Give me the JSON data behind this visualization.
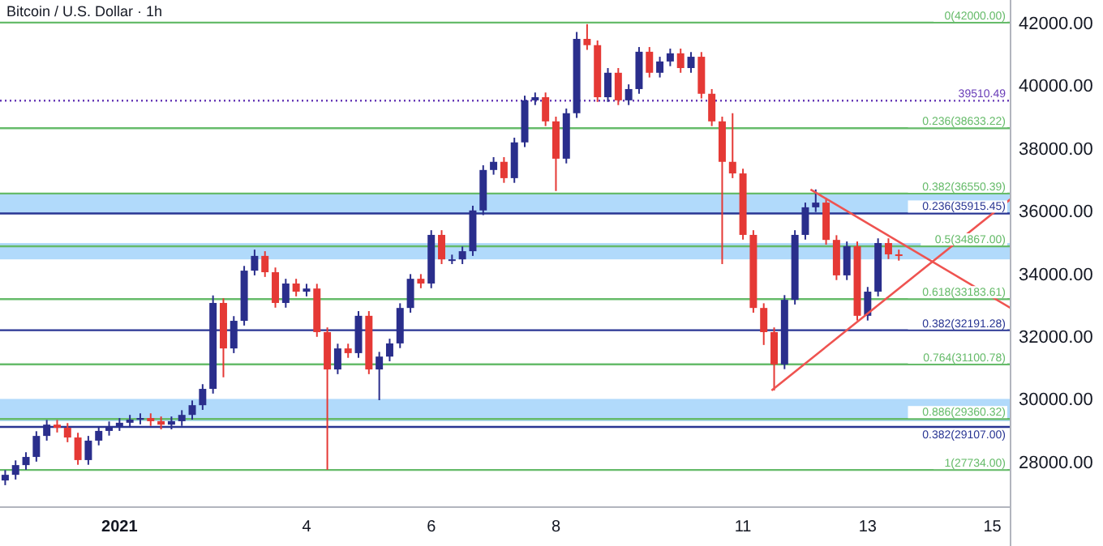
{
  "chart_data": {
    "type": "candlestick",
    "title": "Bitcoin / U.S. Dollar · 1h",
    "x": [
      "2020-12-30T04:00",
      "2020-12-30T08:00",
      "2020-12-30T12:00",
      "2020-12-30T16:00",
      "2020-12-30T20:00",
      "2020-12-31T00:00",
      "2020-12-31T04:00",
      "2020-12-31T08:00",
      "2020-12-31T12:00",
      "2020-12-31T16:00",
      "2020-12-31T20:00",
      "2021-01-01T00:00",
      "2021-01-01T04:00",
      "2021-01-01T08:00",
      "2021-01-01T12:00",
      "2021-01-01T16:00",
      "2021-01-01T20:00",
      "2021-01-02T00:00",
      "2021-01-02T04:00",
      "2021-01-02T08:00",
      "2021-01-02T12:00",
      "2021-01-02T16:00",
      "2021-01-02T20:00",
      "2021-01-03T00:00",
      "2021-01-03T04:00",
      "2021-01-03T08:00",
      "2021-01-03T12:00",
      "2021-01-03T16:00",
      "2021-01-03T20:00",
      "2021-01-04T00:00",
      "2021-01-04T04:00",
      "2021-01-04T08:00",
      "2021-01-04T12:00",
      "2021-01-04T16:00",
      "2021-01-04T20:00",
      "2021-01-05T00:00",
      "2021-01-05T04:00",
      "2021-01-05T08:00",
      "2021-01-05T12:00",
      "2021-01-05T16:00",
      "2021-01-05T20:00",
      "2021-01-06T00:00",
      "2021-01-06T04:00",
      "2021-01-06T08:00",
      "2021-01-06T12:00",
      "2021-01-06T16:00",
      "2021-01-06T20:00",
      "2021-01-07T00:00",
      "2021-01-07T04:00",
      "2021-01-07T08:00",
      "2021-01-07T12:00",
      "2021-01-07T16:00",
      "2021-01-07T20:00",
      "2021-01-08T00:00",
      "2021-01-08T04:00",
      "2021-01-08T08:00",
      "2021-01-08T12:00",
      "2021-01-08T16:00",
      "2021-01-08T20:00",
      "2021-01-09T00:00",
      "2021-01-09T04:00",
      "2021-01-09T08:00",
      "2021-01-09T12:00",
      "2021-01-09T16:00",
      "2021-01-09T20:00",
      "2021-01-10T00:00",
      "2021-01-10T04:00",
      "2021-01-10T08:00",
      "2021-01-10T12:00",
      "2021-01-10T16:00",
      "2021-01-10T20:00",
      "2021-01-11T00:00",
      "2021-01-11T04:00",
      "2021-01-11T08:00",
      "2021-01-11T12:00",
      "2021-01-11T16:00",
      "2021-01-11T20:00",
      "2021-01-12T00:00",
      "2021-01-12T04:00",
      "2021-01-12T08:00",
      "2021-01-12T12:00",
      "2021-01-12T16:00",
      "2021-01-12T20:00",
      "2021-01-13T00:00",
      "2021-01-13T04:00",
      "2021-01-13T08:00",
      "2021-01-13T12:00"
    ],
    "ohlc": [
      [
        27400,
        27730,
        27250,
        27580
      ],
      [
        27580,
        28040,
        27430,
        27890
      ],
      [
        27890,
        28300,
        27740,
        28150
      ],
      [
        28150,
        28970,
        28000,
        28820
      ],
      [
        28820,
        29330,
        28670,
        29180
      ],
      [
        29180,
        29330,
        28930,
        29080
      ],
      [
        29080,
        29230,
        28620,
        28770
      ],
      [
        28770,
        28920,
        27900,
        28050
      ],
      [
        28050,
        28820,
        27900,
        28670
      ],
      [
        28670,
        29130,
        28520,
        28980
      ],
      [
        28980,
        29280,
        28830,
        29130
      ],
      [
        29130,
        29390,
        28980,
        29240
      ],
      [
        29240,
        29490,
        29090,
        29340
      ],
      [
        29340,
        29540,
        29190,
        29390
      ],
      [
        29390,
        29540,
        29140,
        29290
      ],
      [
        29290,
        29440,
        29030,
        29180
      ],
      [
        29180,
        29440,
        29030,
        29290
      ],
      [
        29290,
        29640,
        29140,
        29490
      ],
      [
        29490,
        29950,
        29340,
        29800
      ],
      [
        29800,
        30470,
        29650,
        30320
      ],
      [
        30320,
        33300,
        30170,
        33060
      ],
      [
        33060,
        33210,
        30690,
        31610
      ],
      [
        31610,
        32640,
        31460,
        32490
      ],
      [
        32490,
        34240,
        32340,
        34090
      ],
      [
        34090,
        34760,
        33940,
        34560
      ],
      [
        34560,
        34710,
        33890,
        34040
      ],
      [
        34040,
        34190,
        32910,
        33060
      ],
      [
        33060,
        33830,
        32910,
        33680
      ],
      [
        33680,
        33830,
        33270,
        33420
      ],
      [
        33420,
        33670,
        33270,
        33520
      ],
      [
        33520,
        33670,
        31980,
        32130
      ],
      [
        32130,
        32280,
        27740,
        30940
      ],
      [
        30940,
        31760,
        30790,
        31610
      ],
      [
        31610,
        31760,
        31310,
        31460
      ],
      [
        31460,
        32800,
        31310,
        32650
      ],
      [
        32650,
        32800,
        30790,
        30940
      ],
      [
        30940,
        31500,
        29960,
        31350
      ],
      [
        31350,
        31920,
        31200,
        31770
      ],
      [
        31770,
        33050,
        31620,
        32900
      ],
      [
        32900,
        33980,
        32750,
        33830
      ],
      [
        33830,
        33980,
        33530,
        33680
      ],
      [
        33680,
        35380,
        33530,
        35230
      ],
      [
        35230,
        35380,
        34300,
        34450
      ],
      [
        34450,
        34600,
        34300,
        34450
      ],
      [
        34450,
        34860,
        34300,
        34710
      ],
      [
        34710,
        36160,
        34560,
        36010
      ],
      [
        36010,
        37450,
        35860,
        37300
      ],
      [
        37300,
        37710,
        37150,
        37560
      ],
      [
        37560,
        37710,
        36890,
        37040
      ],
      [
        37040,
        38330,
        36890,
        38180
      ],
      [
        38180,
        39670,
        38030,
        39520
      ],
      [
        39520,
        39770,
        39370,
        39620
      ],
      [
        39620,
        39770,
        38700,
        38850
      ],
      [
        38850,
        39000,
        36630,
        37660
      ],
      [
        37660,
        39260,
        37510,
        39110
      ],
      [
        39110,
        41700,
        38960,
        41480
      ],
      [
        41480,
        41950,
        41130,
        41280
      ],
      [
        41280,
        41430,
        39470,
        39620
      ],
      [
        39620,
        40550,
        39470,
        40400
      ],
      [
        40400,
        40550,
        39370,
        39520
      ],
      [
        39520,
        40030,
        39370,
        39880
      ],
      [
        39880,
        41220,
        39730,
        41070
      ],
      [
        41070,
        41220,
        40250,
        40400
      ],
      [
        40400,
        40910,
        40250,
        40760
      ],
      [
        40760,
        41170,
        40610,
        41020
      ],
      [
        41020,
        41170,
        40400,
        40550
      ],
      [
        40550,
        41060,
        40400,
        40910
      ],
      [
        40910,
        41060,
        39580,
        39730
      ],
      [
        39730,
        39880,
        38700,
        38850
      ],
      [
        38850,
        39000,
        34300,
        37560
      ],
      [
        37560,
        39110,
        37040,
        37190
      ],
      [
        37190,
        37340,
        35080,
        35230
      ],
      [
        35230,
        35380,
        32750,
        32900
      ],
      [
        32900,
        33050,
        31720,
        32130
      ],
      [
        32130,
        32280,
        30270,
        31100
      ],
      [
        31100,
        33310,
        30950,
        33160
      ],
      [
        33160,
        35380,
        33010,
        35230
      ],
      [
        35230,
        36260,
        35080,
        36110
      ],
      [
        36110,
        36680,
        35960,
        36260
      ],
      [
        36260,
        36410,
        34920,
        35070
      ],
      [
        35070,
        35220,
        33790,
        33940
      ],
      [
        33940,
        35020,
        33790,
        34870
      ],
      [
        34870,
        35020,
        32500,
        32650
      ],
      [
        32650,
        33570,
        32500,
        33420
      ],
      [
        33420,
        35120,
        33270,
        34970
      ],
      [
        34970,
        35120,
        34460,
        34610
      ],
      [
        34610,
        34760,
        34410,
        34560
      ]
    ],
    "colors": [
      "#2a2e8c",
      "#2a2e8c",
      "#2a2e8c",
      "#2a2e8c",
      "#2a2e8c",
      "#e53935",
      "#e53935",
      "#e53935",
      "#2a2e8c",
      "#2a2e8c",
      "#2a2e8c",
      "#2a2e8c",
      "#2a2e8c",
      "#2a2e8c",
      "#e53935",
      "#e53935",
      "#2a2e8c",
      "#2a2e8c",
      "#2a2e8c",
      "#2a2e8c",
      "#2a2e8c",
      "#e53935",
      "#2a2e8c",
      "#2a2e8c",
      "#2a2e8c",
      "#e53935",
      "#e53935",
      "#2a2e8c",
      "#e53935",
      "#2a2e8c",
      "#e53935",
      "#e53935",
      "#2a2e8c",
      "#e53935",
      "#2a2e8c",
      "#e53935",
      "#2a2e8c",
      "#2a2e8c",
      "#2a2e8c",
      "#2a2e8c",
      "#e53935",
      "#2a2e8c",
      "#e53935",
      "#2a2e8c",
      "#2a2e8c",
      "#2a2e8c",
      "#2a2e8c",
      "#2a2e8c",
      "#e53935",
      "#2a2e8c",
      "#2a2e8c",
      "#2a2e8c",
      "#e53935",
      "#e53935",
      "#2a2e8c",
      "#2a2e8c",
      "#e53935",
      "#e53935",
      "#2a2e8c",
      "#e53935",
      "#2a2e8c",
      "#2a2e8c",
      "#e53935",
      "#2a2e8c",
      "#2a2e8c",
      "#e53935",
      "#2a2e8c",
      "#e53935",
      "#e53935",
      "#e53935",
      "#e53935",
      "#e53935",
      "#e53935",
      "#e53935",
      "#e53935",
      "#2a2e8c",
      "#2a2e8c",
      "#2a2e8c",
      "#2a2e8c",
      "#e53935",
      "#e53935",
      "#2a2e8c",
      "#e53935",
      "#2a2e8c",
      "#2a2e8c",
      "#e53935",
      "#e53935"
    ],
    "series": [
      {
        "type": "line",
        "color": "#ef5350",
        "x": [
          "2021-01-11T11:00",
          "2021-01-15T07:00"
        ],
        "values": [
          30270,
          36370
        ]
      },
      {
        "type": "line",
        "color": "#ef5350",
        "x": [
          "2021-01-12T02:00",
          "2021-01-15T07:00"
        ],
        "values": [
          36680,
          32900
        ]
      }
    ],
    "xlim": [
      "2020-12-30T02:00",
      "2021-01-15T07:00"
    ],
    "xticks": [
      {
        "value": "2021-01-01",
        "label": "2021"
      },
      {
        "value": "2021-01-04",
        "label": "4"
      },
      {
        "value": "2021-01-06",
        "label": "6"
      },
      {
        "value": "2021-01-08",
        "label": "8"
      },
      {
        "value": "2021-01-11",
        "label": "11"
      },
      {
        "value": "2021-01-13",
        "label": "13"
      },
      {
        "value": "2021-01-15",
        "label": "15"
      }
    ],
    "ylim": [
      26550,
      42720
    ],
    "yticks": [
      {
        "value": 28000,
        "label": "28000.00"
      },
      {
        "value": 30000,
        "label": "30000.00"
      },
      {
        "value": 32000,
        "label": "32000.00"
      },
      {
        "value": 34000,
        "label": "34000.00"
      },
      {
        "value": 36000,
        "label": "36000.00"
      },
      {
        "value": 38000,
        "label": "38000.00"
      },
      {
        "value": 40000,
        "label": "40000.00"
      },
      {
        "value": 42000,
        "label": "42000.00"
      }
    ],
    "bands": [
      {
        "axis": "y",
        "from": 35915,
        "to": 36570,
        "color": "#90caf9"
      },
      {
        "axis": "y",
        "from": 34450,
        "to": 34970,
        "color": "#90caf9"
      },
      {
        "axis": "y",
        "from": 29290,
        "to": 30000,
        "color": "#90caf9"
      }
    ],
    "ref_lines": [
      {
        "axis": "y",
        "value": 42000,
        "label": "0(42000.00)",
        "color": "#66bb6a"
      },
      {
        "axis": "y",
        "value": 39510.49,
        "label": "39510.49",
        "color": "#673ab7",
        "line_style": "dotted"
      },
      {
        "axis": "y",
        "value": 38633.22,
        "label": "0.236(38633.22)",
        "color": "#66bb6a"
      },
      {
        "axis": "y",
        "value": 36550.39,
        "label": "0.382(36550.39)",
        "color": "#66bb6a"
      },
      {
        "axis": "y",
        "value": 35915.45,
        "label": "0.236(35915.45)",
        "color": "#283593"
      },
      {
        "axis": "y",
        "value": 34867,
        "label": "0.5(34867.00)",
        "color": "#66bb6a"
      },
      {
        "axis": "y",
        "value": 33183.61,
        "label": "0.618(33183.61)",
        "color": "#66bb6a"
      },
      {
        "axis": "y",
        "value": 32191.28,
        "label": "0.382(32191.28)",
        "color": "#283593"
      },
      {
        "axis": "y",
        "value": 31100.78,
        "label": "0.764(31100.78)",
        "color": "#66bb6a"
      },
      {
        "axis": "y",
        "value": 29360.32,
        "label": "0.886(29360.32)",
        "color": "#66bb6a"
      },
      {
        "axis": "y",
        "value": 29107,
        "label": "0.382(29107.00)",
        "color": "#283593"
      },
      {
        "axis": "y",
        "value": 27734,
        "label": "1(27734.00)",
        "color": "#66bb6a"
      }
    ]
  }
}
